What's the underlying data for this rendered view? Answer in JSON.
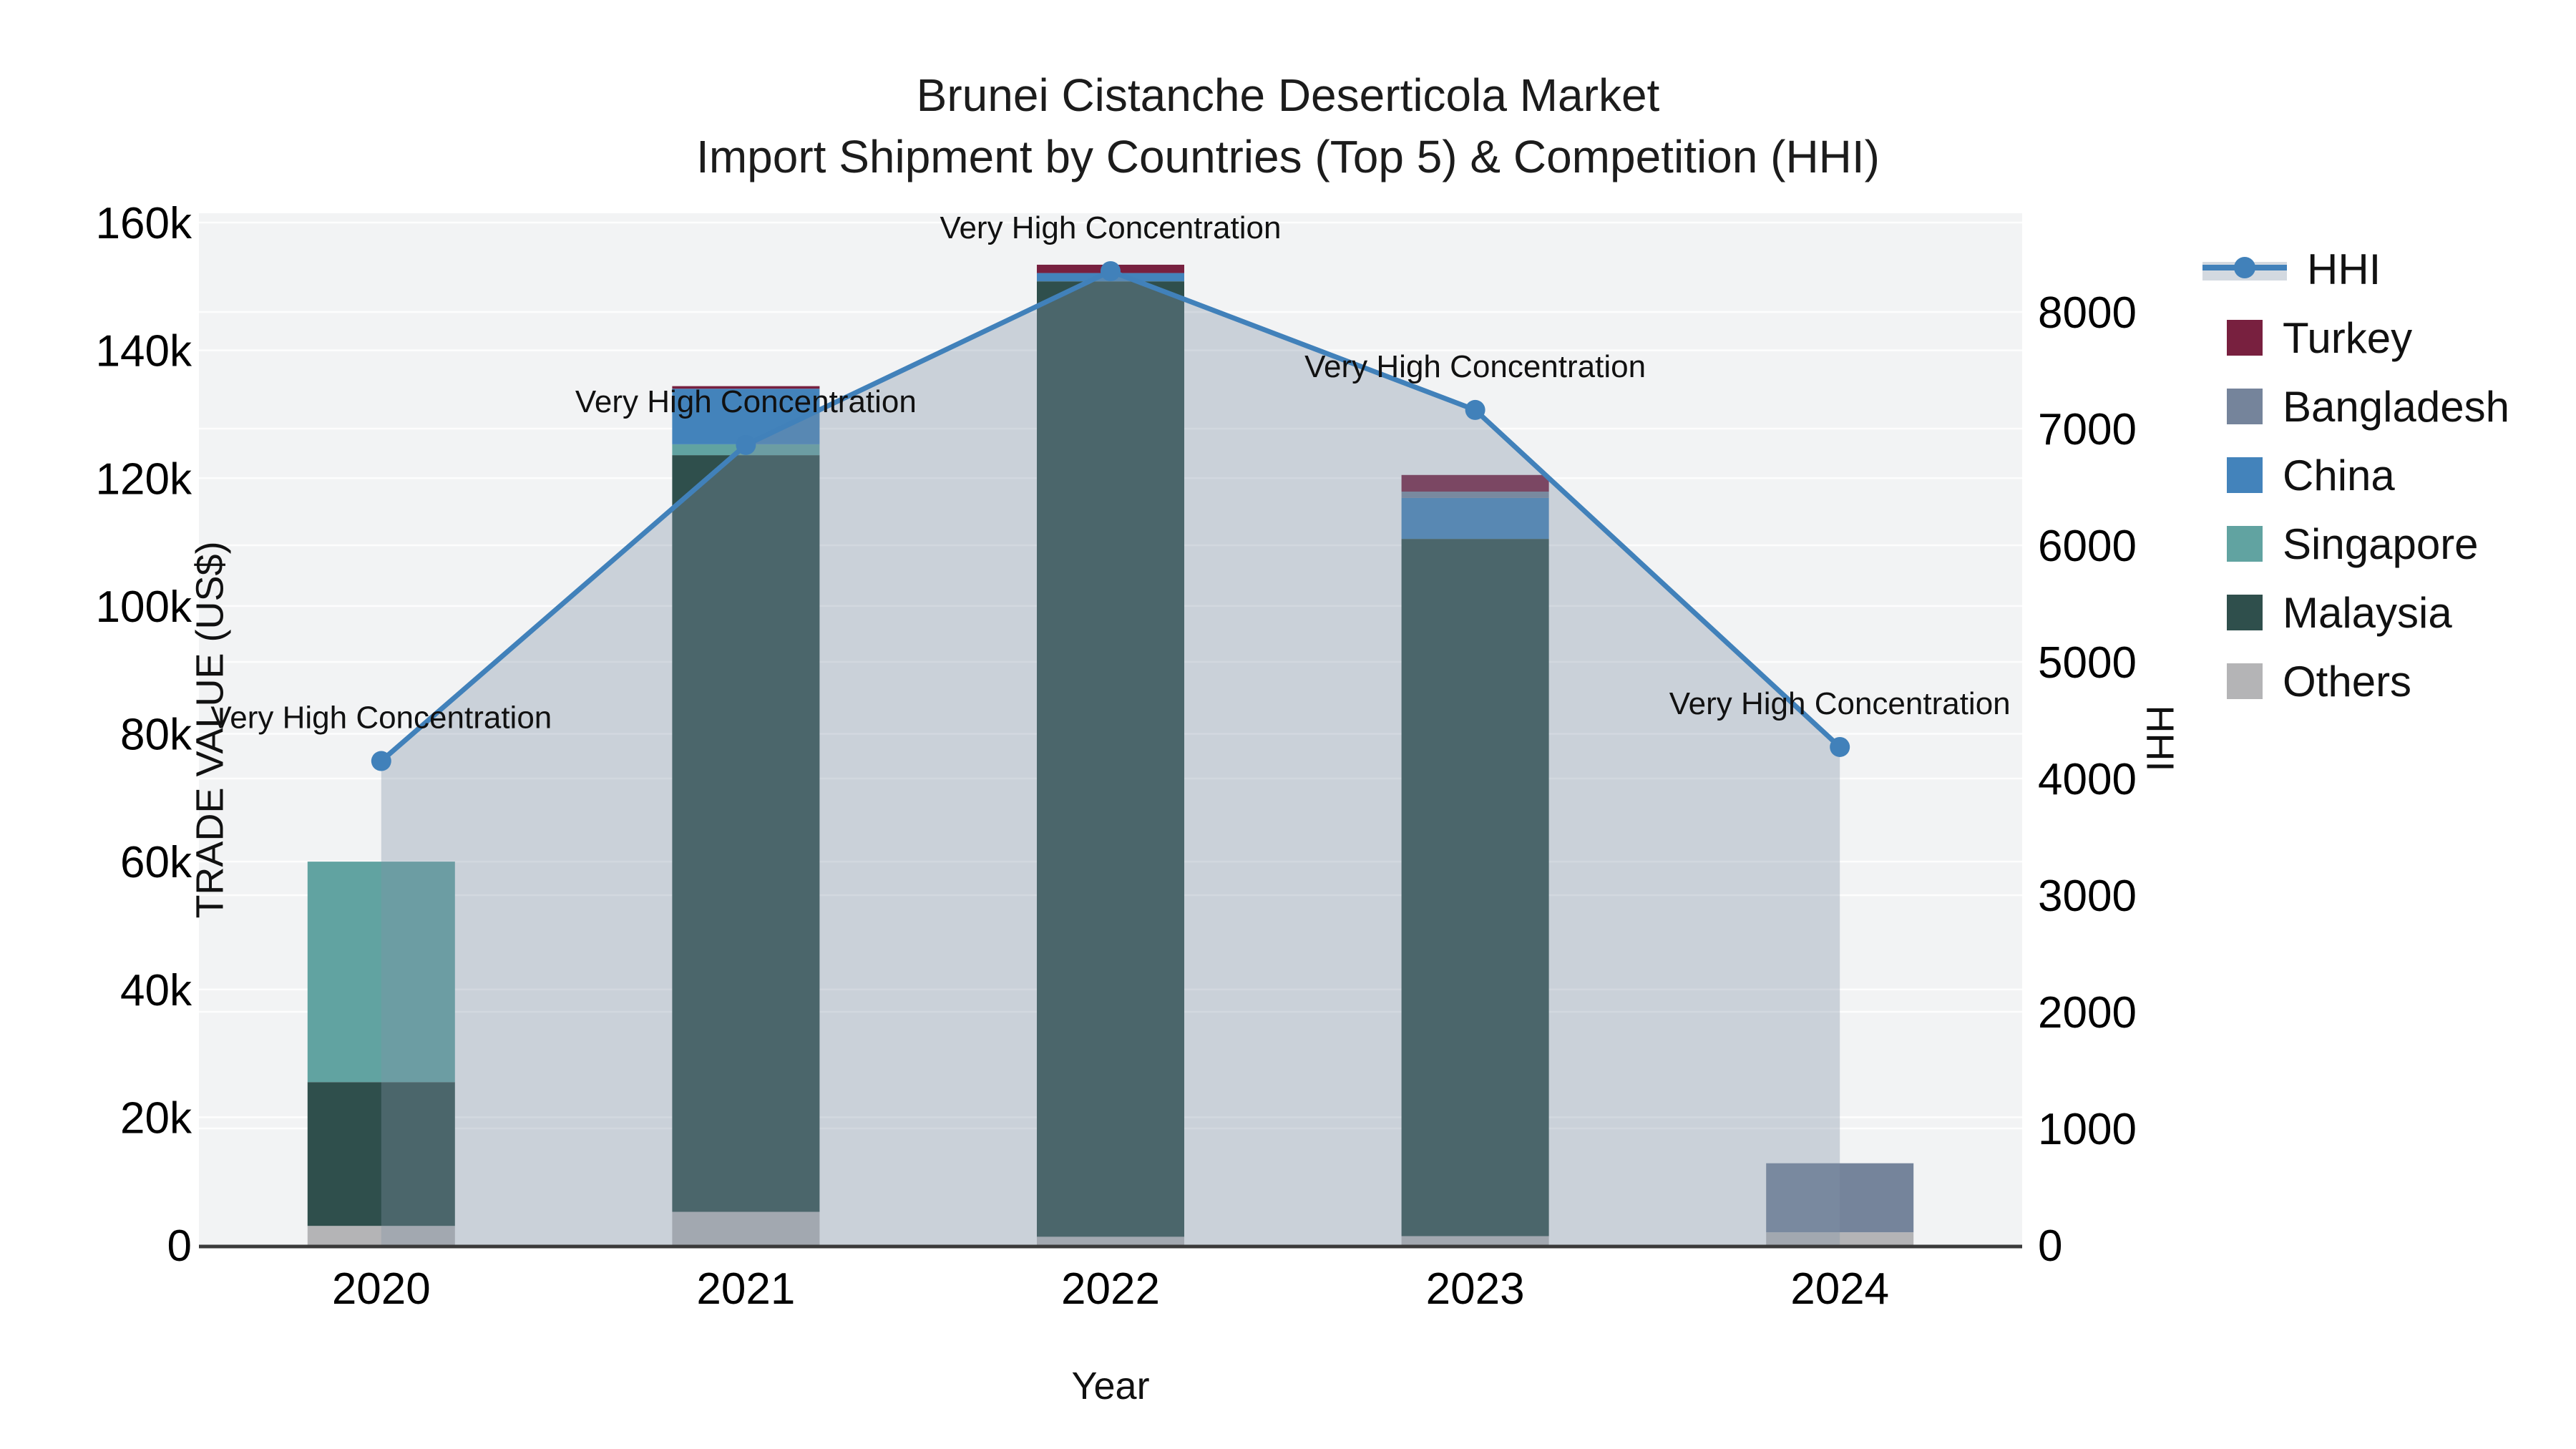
{
  "title": {
    "line1": "Brunei Cistanche Deserticola Market",
    "line2": "Import Shipment by Countries (Top 5) & Competition (HHI)"
  },
  "axes": {
    "left": {
      "title": "TRADE VALUE (US$)",
      "tick_labels": [
        "0",
        "20k",
        "40k",
        "60k",
        "80k",
        "100k",
        "120k",
        "140k",
        "160k"
      ],
      "tick_values": [
        0,
        20000,
        40000,
        60000,
        80000,
        100000,
        120000,
        140000,
        160000
      ],
      "max": 160000
    },
    "right": {
      "title": "HHI",
      "tick_labels": [
        "0",
        "1000",
        "2000",
        "3000",
        "4000",
        "5000",
        "6000",
        "7000",
        "8000"
      ],
      "tick_values": [
        0,
        1000,
        2000,
        3000,
        4000,
        5000,
        6000,
        7000,
        8000
      ]
    },
    "x": {
      "title": "Year",
      "categories": [
        "2020",
        "2021",
        "2022",
        "2023",
        "2024"
      ]
    }
  },
  "annotation_text": "Very High Concentration",
  "legend_order": [
    "HHI",
    "Turkey",
    "Bangladesh",
    "China",
    "Singapore",
    "Malaysia",
    "Others"
  ],
  "colors": {
    "Turkey": "#78203f",
    "Bangladesh": "#75849b",
    "China": "#4383bb",
    "Singapore": "#61a3a1",
    "Malaysia": "#2f4f4c",
    "Others": "#b4b4b6",
    "hhi_line": "#4181ba",
    "area_fill": "rgba(130,146,167,0.35)",
    "plot_bg": "#f2f3f4",
    "grid": "#ffffff",
    "axis_line": "#3a3a3a",
    "tick_text": "#000000"
  },
  "chart_data": {
    "type": "bar",
    "subtype": "stacked-bars-with-line",
    "categories": [
      "2020",
      "2021",
      "2022",
      "2023",
      "2024"
    ],
    "stack_order_bottom_to_top": [
      "Others",
      "Malaysia",
      "Singapore",
      "China",
      "Bangladesh",
      "Turkey"
    ],
    "series": [
      {
        "name": "Others",
        "axis": "left",
        "values": [
          3000,
          5200,
          1300,
          1400,
          2000
        ]
      },
      {
        "name": "Malaysia",
        "axis": "left",
        "values": [
          22500,
          118400,
          149500,
          109100,
          0
        ]
      },
      {
        "name": "Singapore",
        "axis": "left",
        "values": [
          34500,
          1700,
          0,
          0,
          0
        ]
      },
      {
        "name": "China",
        "axis": "left",
        "values": [
          0,
          8700,
          1300,
          6400,
          0
        ]
      },
      {
        "name": "Bangladesh",
        "axis": "left",
        "values": [
          0,
          0,
          0,
          1000,
          10800
        ]
      },
      {
        "name": "Turkey",
        "axis": "left",
        "values": [
          0,
          400,
          1300,
          2600,
          0
        ]
      }
    ],
    "line_series": {
      "name": "HHI",
      "axis": "right",
      "values": [
        4150,
        6860,
        8350,
        7160,
        4270
      ],
      "point_annotations": [
        "Very High Concentration",
        "Very High Concentration",
        "Very High Concentration",
        "Very High Concentration",
        "Very High Concentration"
      ]
    },
    "title": "Brunei Cistanche Deserticola Market — Import Shipment by Countries (Top 5) & Competition (HHI)",
    "xlabel": "Year",
    "ylabel": "TRADE VALUE (US$)",
    "y2label": "HHI",
    "ylim": [
      0,
      160000
    ],
    "y2lim": [
      0,
      8766
    ],
    "grid": true,
    "legend_position": "right"
  }
}
